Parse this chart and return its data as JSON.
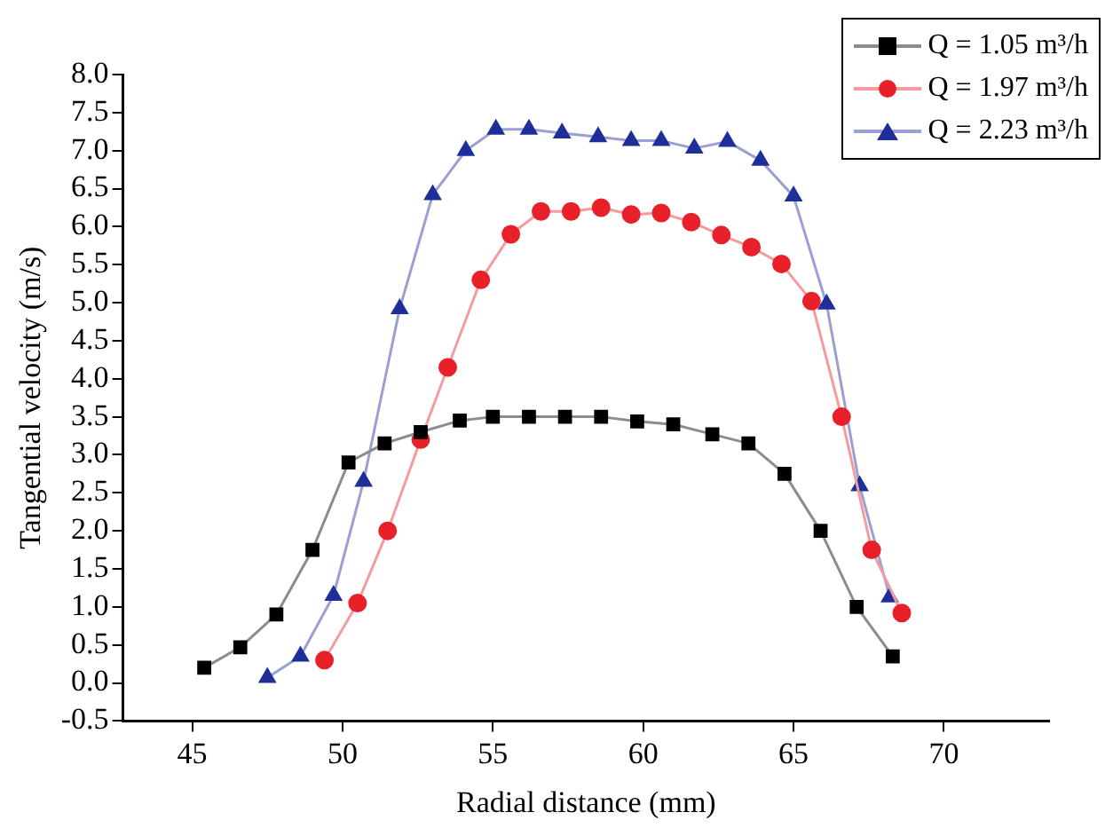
{
  "chart_data": {
    "type": "line",
    "xlabel": "Radial distance (mm)",
    "ylabel": "Tangential velocity (m/s)",
    "xlim": [
      42.7,
      73.5
    ],
    "xticks": [
      45,
      50,
      55,
      60,
      65,
      70
    ],
    "ylim": [
      -0.5,
      8.0
    ],
    "yticks": [
      {
        "value": -0.5,
        "label": "-0.5"
      },
      {
        "value": 0,
        "label": "0.0"
      },
      {
        "value": 0.5,
        "label": "0.5"
      },
      {
        "value": 1,
        "label": "1.0"
      },
      {
        "value": 1.5,
        "label": "1.5"
      },
      {
        "value": 2,
        "label": "2.0"
      },
      {
        "value": 2.5,
        "label": "2.5"
      },
      {
        "value": 3,
        "label": "3.0"
      },
      {
        "value": 3.5,
        "label": "3.5"
      },
      {
        "value": 4,
        "label": "4.0"
      },
      {
        "value": 4.5,
        "label": "4.5"
      },
      {
        "value": 5,
        "label": "5.0"
      },
      {
        "value": 5.5,
        "label": "5.5"
      },
      {
        "value": 6,
        "label": "6.0"
      },
      {
        "value": 6.5,
        "label": "6.5"
      },
      {
        "value": 7,
        "label": "7.0"
      },
      {
        "value": 7.5,
        "label": "7.5"
      },
      {
        "value": 8,
        "label": "8.0"
      }
    ],
    "grid": false,
    "legend": "top right",
    "line_style": "solid",
    "series": [
      {
        "name": "Q = 1.05 m³/h",
        "color": "#000000",
        "marker": "square",
        "x": [
          45.4,
          46.6,
          47.8,
          49.0,
          50.2,
          51.4,
          52.6,
          53.9,
          55.0,
          56.2,
          57.4,
          58.6,
          59.8,
          61.0,
          62.3,
          63.5,
          64.7,
          65.9,
          67.1,
          68.3
        ],
        "values": [
          0.2,
          0.47,
          0.9,
          1.75,
          2.9,
          3.15,
          3.3,
          3.45,
          3.5,
          3.5,
          3.5,
          3.5,
          3.44,
          3.4,
          3.27,
          3.15,
          2.75,
          2.0,
          1.0,
          0.35
        ]
      },
      {
        "name": "Q = 1.97 m³/h",
        "color": "#e8202a",
        "marker": "circle",
        "x": [
          49.4,
          50.5,
          51.5,
          52.6,
          53.5,
          54.6,
          55.6,
          56.6,
          57.6,
          58.6,
          59.6,
          60.6,
          61.6,
          62.6,
          63.6,
          64.6,
          65.6,
          66.6,
          67.6,
          68.6
        ],
        "values": [
          0.3,
          1.05,
          2.0,
          3.2,
          4.15,
          5.3,
          5.9,
          6.2,
          6.2,
          6.25,
          6.16,
          6.18,
          6.06,
          5.89,
          5.73,
          5.51,
          5.02,
          3.5,
          1.75,
          0.92
        ]
      },
      {
        "name": "Q = 2.23 m³/h",
        "color": "#1f2f9a",
        "marker": "triangle",
        "x": [
          47.5,
          48.6,
          49.7,
          50.7,
          51.9,
          53.0,
          54.1,
          55.1,
          56.2,
          57.3,
          58.5,
          59.6,
          60.6,
          61.7,
          62.8,
          63.9,
          65.0,
          66.1,
          67.2,
          68.2
        ],
        "values": [
          0.07,
          0.35,
          1.15,
          2.65,
          4.92,
          6.42,
          7.0,
          7.28,
          7.28,
          7.23,
          7.18,
          7.13,
          7.13,
          7.03,
          7.12,
          6.87,
          6.4,
          4.98,
          2.59,
          1.13
        ]
      }
    ]
  }
}
